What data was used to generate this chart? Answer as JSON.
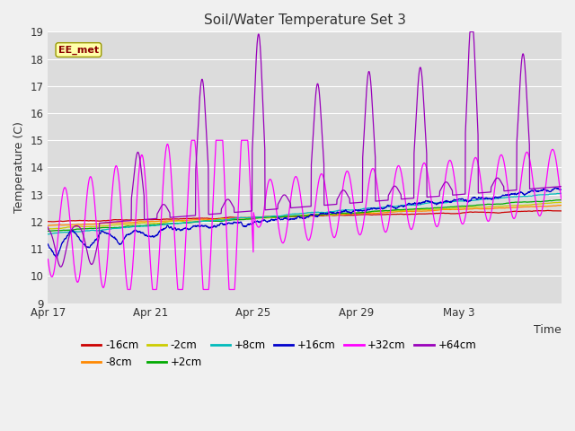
{
  "title": "Soil/Water Temperature Set 3",
  "ylabel": "Temperature (C)",
  "xlabel": "Time",
  "watermark": "EE_met",
  "ylim": [
    9.0,
    19.0
  ],
  "yticks": [
    9.0,
    10.0,
    11.0,
    12.0,
    13.0,
    14.0,
    15.0,
    16.0,
    17.0,
    18.0,
    19.0
  ],
  "fig_bg": "#f0f0f0",
  "ax_bg": "#dcdcdc",
  "grid_color": "#ffffff",
  "series": [
    {
      "label": "-16cm",
      "color": "#cc0000"
    },
    {
      "label": "-8cm",
      "color": "#ff8800"
    },
    {
      "label": "-2cm",
      "color": "#cccc00"
    },
    {
      "label": "+2cm",
      "color": "#00aa00"
    },
    {
      "label": "+8cm",
      "color": "#00bbbb"
    },
    {
      "label": "+16cm",
      "color": "#0000cc"
    },
    {
      "label": "+32cm",
      "color": "#ff00ff"
    },
    {
      "label": "+64cm",
      "color": "#9900bb"
    }
  ],
  "xtick_labels": [
    "Apr 17",
    "Apr 21",
    "Apr 25",
    "Apr 29",
    "May 3"
  ],
  "xtick_positions": [
    0,
    4,
    8,
    12,
    16
  ],
  "xlim": [
    0,
    20
  ],
  "n_points": 2000
}
